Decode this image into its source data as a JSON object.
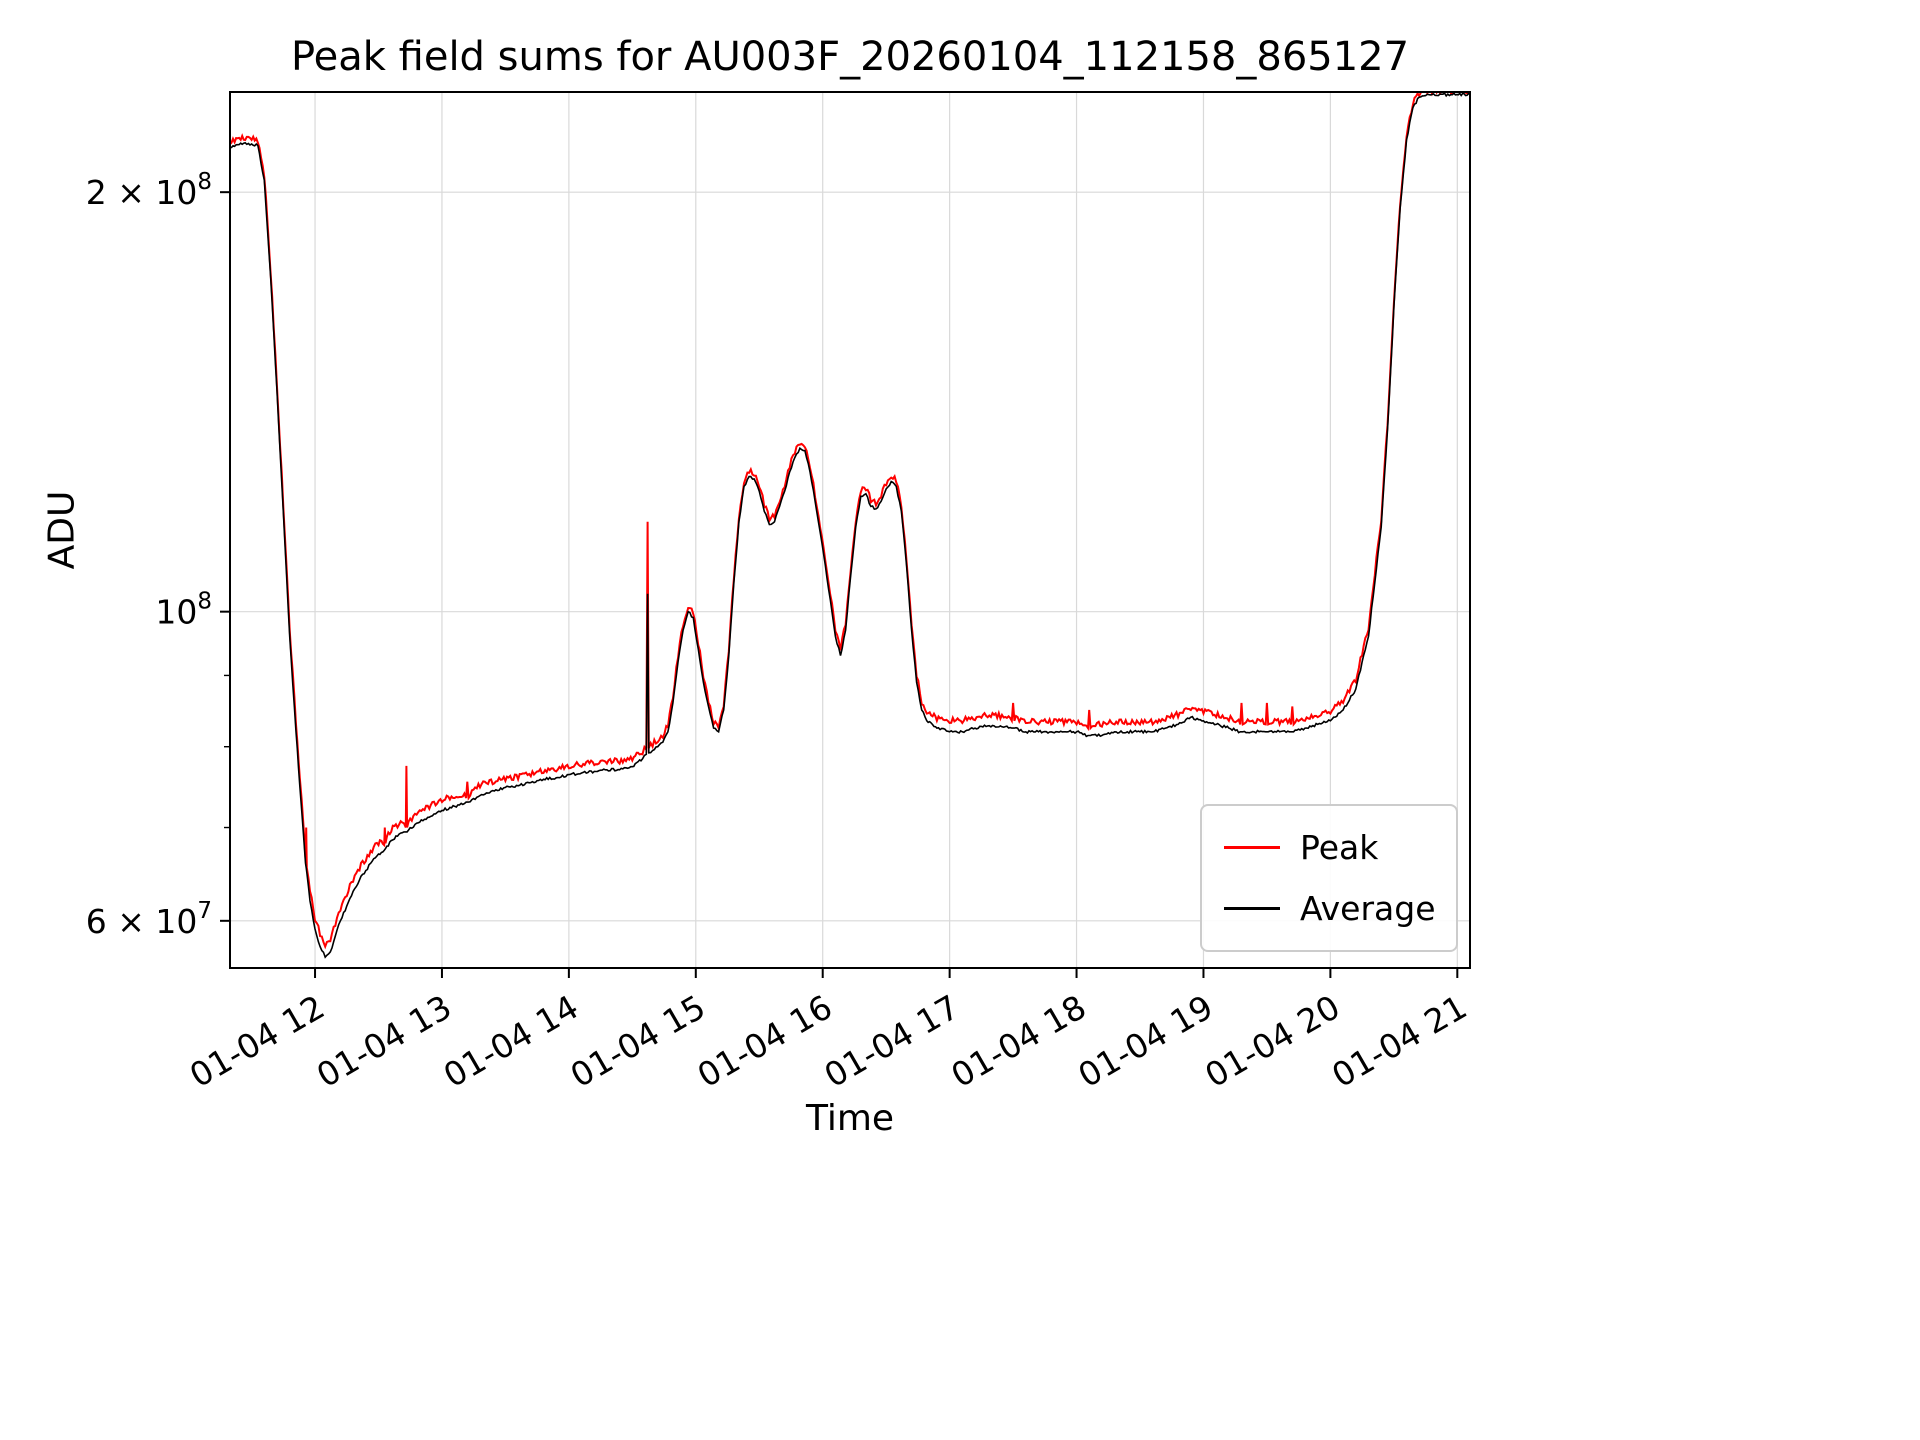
{
  "figure": {
    "background": "#ffffff"
  },
  "chart_data": {
    "type": "line",
    "title": "Peak field sums for AU003F_20260104_112158_865127",
    "xlabel": "Time",
    "ylabel": "ADU",
    "yscale": "log",
    "grid": true,
    "grid_color": "#d9d9d9",
    "legend_position": "lower right",
    "x_unit": "hour of day on 01-04",
    "value_scale": 10000000,
    "xlim": [
      11.33,
      21.1
    ],
    "ylim": [
      5.55,
      23.6
    ],
    "xticks": [
      {
        "v": 12,
        "label": "01-04 12"
      },
      {
        "v": 13,
        "label": "01-04 13"
      },
      {
        "v": 14,
        "label": "01-04 14"
      },
      {
        "v": 15,
        "label": "01-04 15"
      },
      {
        "v": 16,
        "label": "01-04 16"
      },
      {
        "v": 17,
        "label": "01-04 17"
      },
      {
        "v": 18,
        "label": "01-04 18"
      },
      {
        "v": 19,
        "label": "01-04 19"
      },
      {
        "v": 20,
        "label": "01-04 20"
      },
      {
        "v": 21,
        "label": "01-04 21"
      }
    ],
    "yticks_major": [
      {
        "v": 20,
        "base": "2 × 10",
        "exp": "8"
      },
      {
        "v": 10,
        "base": "10",
        "exp": "8"
      },
      {
        "v": 6,
        "base": "6 × 10",
        "exp": "7"
      }
    ],
    "yticks_minor": [
      7,
      8,
      9
    ],
    "series": [
      {
        "name": "Peak",
        "color": "#ff0000",
        "points_column": 2,
        "noise_pct": 0.9,
        "line_width": 2.0
      },
      {
        "name": "Average",
        "color": "#000000",
        "points_column": 1,
        "noise_pct": 0.45,
        "line_width": 1.6
      }
    ],
    "points_columns": [
      "time_hour",
      "average_x1e7",
      "peak_x1e7"
    ],
    "points": [
      [
        11.33,
        21.55,
        21.65
      ],
      [
        11.45,
        21.7,
        21.8
      ],
      [
        11.55,
        21.6,
        21.7
      ],
      [
        11.6,
        20.4,
        20.5
      ],
      [
        11.65,
        17.4,
        17.5
      ],
      [
        11.7,
        14.4,
        14.5
      ],
      [
        11.75,
        11.8,
        11.9
      ],
      [
        11.8,
        9.6,
        9.7
      ],
      [
        11.85,
        8.2,
        8.3
      ],
      [
        11.88,
        7.5,
        7.6
      ],
      [
        11.91,
        6.9,
        7.0
      ],
      [
        11.925,
        6.6,
        6.65
      ],
      [
        11.93,
        6.55,
        7.0
      ],
      [
        11.935,
        6.5,
        6.55
      ],
      [
        11.96,
        6.2,
        6.3
      ],
      [
        12.0,
        5.92,
        6.0
      ],
      [
        12.04,
        5.75,
        5.85
      ],
      [
        12.08,
        5.65,
        5.75
      ],
      [
        12.12,
        5.7,
        5.8
      ],
      [
        12.16,
        5.85,
        5.95
      ],
      [
        12.2,
        6.0,
        6.1
      ],
      [
        12.25,
        6.15,
        6.25
      ],
      [
        12.3,
        6.3,
        6.4
      ],
      [
        12.35,
        6.42,
        6.52
      ],
      [
        12.4,
        6.52,
        6.62
      ],
      [
        12.45,
        6.62,
        6.72
      ],
      [
        12.5,
        6.7,
        6.8
      ],
      [
        12.545,
        6.74,
        6.8
      ],
      [
        12.55,
        6.75,
        7.0
      ],
      [
        12.555,
        6.76,
        6.82
      ],
      [
        12.6,
        6.85,
        6.95
      ],
      [
        12.65,
        6.9,
        7.0
      ],
      [
        12.7,
        6.95,
        7.05
      ],
      [
        12.715,
        6.95,
        7.0
      ],
      [
        12.72,
        6.95,
        7.75
      ],
      [
        12.725,
        6.95,
        7.0
      ],
      [
        12.8,
        7.05,
        7.15
      ],
      [
        12.9,
        7.12,
        7.22
      ],
      [
        13.0,
        7.2,
        7.3
      ],
      [
        13.1,
        7.25,
        7.35
      ],
      [
        13.19,
        7.3,
        7.35
      ],
      [
        13.2,
        7.3,
        7.55
      ],
      [
        13.21,
        7.3,
        7.35
      ],
      [
        13.3,
        7.38,
        7.48
      ],
      [
        13.4,
        7.44,
        7.52
      ],
      [
        13.5,
        7.48,
        7.56
      ],
      [
        13.6,
        7.5,
        7.58
      ],
      [
        13.7,
        7.54,
        7.62
      ],
      [
        13.8,
        7.58,
        7.66
      ],
      [
        13.9,
        7.6,
        7.68
      ],
      [
        14.0,
        7.64,
        7.72
      ],
      [
        14.1,
        7.66,
        7.74
      ],
      [
        14.2,
        7.68,
        7.76
      ],
      [
        14.3,
        7.7,
        7.78
      ],
      [
        14.4,
        7.7,
        7.78
      ],
      [
        14.5,
        7.74,
        7.82
      ],
      [
        14.58,
        7.84,
        7.9
      ],
      [
        14.61,
        7.9,
        7.96
      ],
      [
        14.62,
        10.3,
        11.6
      ],
      [
        14.63,
        7.92,
        7.98
      ],
      [
        14.66,
        7.95,
        8.0
      ],
      [
        14.7,
        8.0,
        8.06
      ],
      [
        14.74,
        8.06,
        8.12
      ],
      [
        14.78,
        8.2,
        8.26
      ],
      [
        14.82,
        8.6,
        8.66
      ],
      [
        14.86,
        9.2,
        9.26
      ],
      [
        14.9,
        9.7,
        9.76
      ],
      [
        14.94,
        10.0,
        10.06
      ],
      [
        14.98,
        9.9,
        9.96
      ],
      [
        15.02,
        9.4,
        9.46
      ],
      [
        15.06,
        8.9,
        8.96
      ],
      [
        15.1,
        8.55,
        8.6
      ],
      [
        15.14,
        8.25,
        8.3
      ],
      [
        15.18,
        8.2,
        8.25
      ],
      [
        15.22,
        8.5,
        8.55
      ],
      [
        15.26,
        9.3,
        9.36
      ],
      [
        15.3,
        10.5,
        10.56
      ],
      [
        15.34,
        11.6,
        11.66
      ],
      [
        15.38,
        12.3,
        12.36
      ],
      [
        15.42,
        12.5,
        12.58
      ],
      [
        15.46,
        12.45,
        12.52
      ],
      [
        15.5,
        12.2,
        12.28
      ],
      [
        15.54,
        11.8,
        11.88
      ],
      [
        15.58,
        11.55,
        11.62
      ],
      [
        15.62,
        11.6,
        11.68
      ],
      [
        15.66,
        11.9,
        11.98
      ],
      [
        15.7,
        12.2,
        12.28
      ],
      [
        15.74,
        12.6,
        12.68
      ],
      [
        15.78,
        12.9,
        12.98
      ],
      [
        15.82,
        13.1,
        13.18
      ],
      [
        15.86,
        13.05,
        13.12
      ],
      [
        15.9,
        12.6,
        12.68
      ],
      [
        15.94,
        12.0,
        12.08
      ],
      [
        15.98,
        11.4,
        11.48
      ],
      [
        16.02,
        10.8,
        10.88
      ],
      [
        16.06,
        10.2,
        10.28
      ],
      [
        16.1,
        9.6,
        9.68
      ],
      [
        16.14,
        9.3,
        9.38
      ],
      [
        16.18,
        9.7,
        9.78
      ],
      [
        16.22,
        10.6,
        10.68
      ],
      [
        16.26,
        11.5,
        11.58
      ],
      [
        16.3,
        12.1,
        12.18
      ],
      [
        16.34,
        12.15,
        12.22
      ],
      [
        16.38,
        11.9,
        11.98
      ],
      [
        16.42,
        11.85,
        11.92
      ],
      [
        16.46,
        12.0,
        12.08
      ],
      [
        16.5,
        12.25,
        12.32
      ],
      [
        16.54,
        12.4,
        12.48
      ],
      [
        16.58,
        12.3,
        12.38
      ],
      [
        16.62,
        11.8,
        11.88
      ],
      [
        16.66,
        10.8,
        10.88
      ],
      [
        16.7,
        9.7,
        9.78
      ],
      [
        16.74,
        8.9,
        8.98
      ],
      [
        16.78,
        8.5,
        8.58
      ],
      [
        16.82,
        8.35,
        8.45
      ],
      [
        16.9,
        8.25,
        8.35
      ],
      [
        17.0,
        8.2,
        8.32
      ],
      [
        17.1,
        8.2,
        8.32
      ],
      [
        17.2,
        8.25,
        8.36
      ],
      [
        17.3,
        8.28,
        8.4
      ],
      [
        17.4,
        8.28,
        8.38
      ],
      [
        17.49,
        8.25,
        8.35
      ],
      [
        17.5,
        8.25,
        8.6
      ],
      [
        17.51,
        8.25,
        8.35
      ],
      [
        17.6,
        8.2,
        8.32
      ],
      [
        17.7,
        8.2,
        8.3
      ],
      [
        17.8,
        8.2,
        8.3
      ],
      [
        17.9,
        8.2,
        8.3
      ],
      [
        18.0,
        8.2,
        8.3
      ],
      [
        18.09,
        8.15,
        8.25
      ],
      [
        18.1,
        8.15,
        8.5
      ],
      [
        18.11,
        8.15,
        8.25
      ],
      [
        18.2,
        8.15,
        8.27
      ],
      [
        18.3,
        8.2,
        8.3
      ],
      [
        18.4,
        8.2,
        8.3
      ],
      [
        18.5,
        8.2,
        8.3
      ],
      [
        18.6,
        8.2,
        8.3
      ],
      [
        18.7,
        8.25,
        8.35
      ],
      [
        18.8,
        8.3,
        8.4
      ],
      [
        18.9,
        8.4,
        8.5
      ],
      [
        19.0,
        8.35,
        8.45
      ],
      [
        19.1,
        8.3,
        8.4
      ],
      [
        19.2,
        8.25,
        8.35
      ],
      [
        19.29,
        8.2,
        8.3
      ],
      [
        19.3,
        8.2,
        8.6
      ],
      [
        19.31,
        8.2,
        8.3
      ],
      [
        19.4,
        8.2,
        8.32
      ],
      [
        19.49,
        8.2,
        8.3
      ],
      [
        19.5,
        8.2,
        8.6
      ],
      [
        19.51,
        8.2,
        8.3
      ],
      [
        19.6,
        8.2,
        8.3
      ],
      [
        19.69,
        8.2,
        8.3
      ],
      [
        19.7,
        8.2,
        8.55
      ],
      [
        19.71,
        8.2,
        8.3
      ],
      [
        19.8,
        8.25,
        8.35
      ],
      [
        19.9,
        8.3,
        8.4
      ],
      [
        20.0,
        8.35,
        8.45
      ],
      [
        20.1,
        8.5,
        8.6
      ],
      [
        20.2,
        8.8,
        8.9
      ],
      [
        20.3,
        9.6,
        9.7
      ],
      [
        20.4,
        11.5,
        11.6
      ],
      [
        20.45,
        13.5,
        13.6
      ],
      [
        20.5,
        16.5,
        16.6
      ],
      [
        20.55,
        19.5,
        19.6
      ],
      [
        20.6,
        21.8,
        21.9
      ],
      [
        20.65,
        23.0,
        23.1
      ],
      [
        20.7,
        23.4,
        23.45
      ],
      [
        20.8,
        23.5,
        23.55
      ],
      [
        20.95,
        23.5,
        23.55
      ],
      [
        21.1,
        23.5,
        23.55
      ]
    ]
  }
}
